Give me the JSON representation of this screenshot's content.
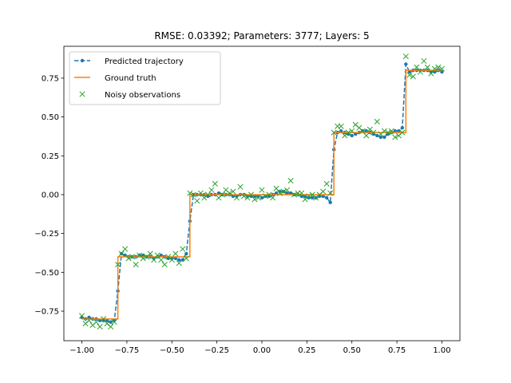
{
  "chart_data": {
    "type": "line",
    "title": "RMSE: 0.03392; Parameters: 3777; Layers: 5",
    "xlabel": "",
    "ylabel": "",
    "xlim": [
      -1.1,
      1.1
    ],
    "ylim": [
      -0.94,
      0.955
    ],
    "x_ticks": [
      -1.0,
      -0.75,
      -0.5,
      -0.25,
      0.0,
      0.25,
      0.5,
      0.75,
      1.0
    ],
    "x_tick_labels": [
      "−1.00",
      "−0.75",
      "−0.50",
      "−0.25",
      "0.00",
      "0.25",
      "0.50",
      "0.75",
      "1.00"
    ],
    "y_ticks": [
      -0.75,
      -0.5,
      -0.25,
      0.0,
      0.25,
      0.5,
      0.75
    ],
    "y_tick_labels": [
      "−0.75",
      "−0.50",
      "−0.25",
      "0.00",
      "0.25",
      "0.50",
      "0.75"
    ],
    "legend_position": "top-left",
    "legend": [
      {
        "label": "Predicted trajectory",
        "style": "dashed-dot"
      },
      {
        "label": "Ground truth",
        "style": "solid"
      },
      {
        "label": "Noisy observations",
        "style": "x-marker"
      }
    ],
    "series": [
      {
        "name": "Predicted trajectory",
        "color": "#1f77b4",
        "x": [
          -1.0,
          -0.98,
          -0.96,
          -0.94,
          -0.92,
          -0.9,
          -0.88,
          -0.86,
          -0.84,
          -0.82,
          -0.8,
          -0.78,
          -0.76,
          -0.74,
          -0.72,
          -0.7,
          -0.68,
          -0.66,
          -0.64,
          -0.62,
          -0.6,
          -0.58,
          -0.56,
          -0.54,
          -0.52,
          -0.5,
          -0.48,
          -0.46,
          -0.44,
          -0.42,
          -0.4,
          -0.38,
          -0.36,
          -0.34,
          -0.32,
          -0.3,
          -0.28,
          -0.26,
          -0.24,
          -0.22,
          -0.2,
          -0.18,
          -0.16,
          -0.14,
          -0.12,
          -0.1,
          -0.08,
          -0.06,
          -0.04,
          -0.02,
          0.0,
          0.02,
          0.04,
          0.06,
          0.08,
          0.1,
          0.12,
          0.14,
          0.16,
          0.18,
          0.2,
          0.22,
          0.24,
          0.26,
          0.28,
          0.3,
          0.32,
          0.34,
          0.36,
          0.38,
          0.4,
          0.42,
          0.44,
          0.46,
          0.48,
          0.5,
          0.52,
          0.54,
          0.56,
          0.58,
          0.6,
          0.62,
          0.64,
          0.66,
          0.68,
          0.7,
          0.72,
          0.74,
          0.76,
          0.78,
          0.8,
          0.82,
          0.84,
          0.86,
          0.88,
          0.9,
          0.92,
          0.94,
          0.96,
          0.98,
          1.0
        ],
        "y": [
          -0.79,
          -0.8,
          -0.79,
          -0.8,
          -0.8,
          -0.81,
          -0.81,
          -0.81,
          -0.82,
          -0.81,
          -0.62,
          -0.38,
          -0.39,
          -0.4,
          -0.4,
          -0.4,
          -0.39,
          -0.39,
          -0.4,
          -0.4,
          -0.41,
          -0.4,
          -0.39,
          -0.4,
          -0.41,
          -0.41,
          -0.41,
          -0.42,
          -0.42,
          -0.38,
          -0.17,
          0.0,
          0.0,
          0.0,
          0.0,
          -0.01,
          0.0,
          0.0,
          0.01,
          0.0,
          0.0,
          0.0,
          -0.01,
          -0.01,
          0.0,
          0.0,
          -0.01,
          -0.01,
          -0.01,
          -0.01,
          -0.02,
          -0.01,
          -0.01,
          0.0,
          0.01,
          0.02,
          0.02,
          0.01,
          0.01,
          0.0,
          0.0,
          -0.01,
          -0.01,
          -0.02,
          -0.02,
          -0.02,
          -0.01,
          -0.01,
          -0.02,
          -0.05,
          0.29,
          0.4,
          0.41,
          0.4,
          0.39,
          0.38,
          0.39,
          0.4,
          0.41,
          0.41,
          0.4,
          0.39,
          0.38,
          0.37,
          0.37,
          0.39,
          0.4,
          0.41,
          0.41,
          0.43,
          0.84,
          0.79,
          0.8,
          0.8,
          0.8,
          0.8,
          0.8,
          0.79,
          0.79,
          0.8,
          0.79
        ]
      },
      {
        "name": "Ground truth",
        "color": "#ff7f0e",
        "x": [
          -1.0,
          -0.8,
          -0.8,
          -0.4,
          -0.4,
          0.4,
          0.4,
          0.8,
          0.8,
          1.0
        ],
        "y": [
          -0.8,
          -0.8,
          -0.4,
          -0.4,
          0.0,
          0.0,
          0.4,
          0.4,
          0.8,
          0.8
        ]
      },
      {
        "name": "Noisy observations",
        "color": "#2ca02c",
        "x": [
          -1.0,
          -0.98,
          -0.96,
          -0.94,
          -0.92,
          -0.9,
          -0.88,
          -0.86,
          -0.84,
          -0.82,
          -0.8,
          -0.78,
          -0.76,
          -0.74,
          -0.72,
          -0.7,
          -0.68,
          -0.66,
          -0.64,
          -0.62,
          -0.6,
          -0.58,
          -0.56,
          -0.54,
          -0.52,
          -0.5,
          -0.48,
          -0.46,
          -0.44,
          -0.42,
          -0.4,
          -0.38,
          -0.36,
          -0.34,
          -0.32,
          -0.3,
          -0.28,
          -0.26,
          -0.24,
          -0.22,
          -0.2,
          -0.18,
          -0.16,
          -0.14,
          -0.12,
          -0.1,
          -0.08,
          -0.06,
          -0.04,
          -0.02,
          0.0,
          0.02,
          0.04,
          0.06,
          0.08,
          0.1,
          0.12,
          0.14,
          0.16,
          0.18,
          0.2,
          0.22,
          0.24,
          0.26,
          0.28,
          0.3,
          0.32,
          0.34,
          0.36,
          0.38,
          0.4,
          0.42,
          0.44,
          0.46,
          0.48,
          0.5,
          0.52,
          0.54,
          0.56,
          0.58,
          0.6,
          0.62,
          0.64,
          0.66,
          0.68,
          0.7,
          0.72,
          0.74,
          0.76,
          0.78,
          0.8,
          0.82,
          0.84,
          0.86,
          0.88,
          0.9,
          0.92,
          0.94,
          0.96,
          0.98,
          1.0
        ],
        "y": [
          -0.78,
          -0.83,
          -0.81,
          -0.84,
          -0.82,
          -0.85,
          -0.8,
          -0.83,
          -0.85,
          -0.82,
          -0.45,
          -0.38,
          -0.35,
          -0.41,
          -0.4,
          -0.45,
          -0.39,
          -0.41,
          -0.4,
          -0.38,
          -0.42,
          -0.39,
          -0.42,
          -0.45,
          -0.4,
          -0.42,
          -0.38,
          -0.44,
          -0.35,
          -0.41,
          0.01,
          0.0,
          -0.04,
          0.01,
          -0.02,
          0.0,
          0.03,
          0.07,
          -0.02,
          0.0,
          0.03,
          0.01,
          0.02,
          -0.02,
          0.05,
          -0.01,
          -0.02,
          0.0,
          -0.03,
          -0.02,
          0.03,
          -0.01,
          0.0,
          -0.02,
          0.04,
          0.01,
          0.02,
          0.03,
          0.09,
          0.0,
          0.01,
          0.01,
          -0.03,
          -0.01,
          0.0,
          -0.02,
          0.0,
          0.02,
          0.07,
          0.01,
          0.4,
          0.44,
          0.44,
          0.38,
          0.4,
          0.41,
          0.45,
          0.43,
          0.41,
          0.38,
          0.42,
          0.4,
          0.47,
          0.39,
          0.41,
          0.4,
          0.41,
          0.37,
          0.38,
          0.4,
          0.89,
          0.77,
          0.76,
          0.82,
          0.79,
          0.86,
          0.82,
          0.78,
          0.81,
          0.82,
          0.81
        ]
      }
    ]
  }
}
